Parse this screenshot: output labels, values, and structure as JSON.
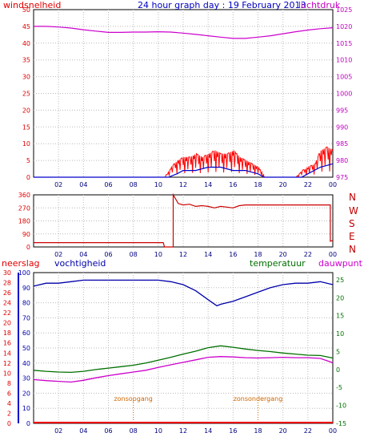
{
  "header": {
    "left_label": "windsnelheid",
    "title": "24 hour graph day : 19 February 2013",
    "right_label": "luchtdruk"
  },
  "compass": [
    "N",
    "W",
    "S",
    "E",
    "N"
  ],
  "lower_labels": {
    "neerslag": "neerslag",
    "vochtigheid": "vochtigheid",
    "temperatuur": "temperatuur",
    "dauwpunt": "dauwpunt",
    "sunrise": "zonsopgang",
    "sunset": "zonsondergang"
  },
  "colors": {
    "wind": "#ff0000",
    "pressure": "#cc00cc",
    "gust_blue": "#0000cc",
    "direction": "#cc0000",
    "humidity": "#0000aa",
    "temperature": "#007000",
    "dewpoint": "#cc00cc",
    "precip": "#ee0000",
    "sun": "#cc6600"
  },
  "chart_data": [
    {
      "type": "line",
      "name": "windsnelheid / luchtdruk",
      "x_ticks": [
        "02",
        "04",
        "06",
        "08",
        "10",
        "12",
        "14",
        "16",
        "18",
        "20",
        "22",
        "00"
      ],
      "y_left_ticks": [
        "0",
        "5",
        "10",
        "15",
        "20",
        "25",
        "30",
        "35",
        "40",
        "45",
        "50"
      ],
      "y_right_ticks": [
        "975",
        "980",
        "985",
        "990",
        "995",
        "1000",
        "1005",
        "1010",
        "1015",
        "1020",
        "1025"
      ],
      "ylim_left": [
        0,
        50
      ],
      "ylim_right": [
        975,
        1025
      ],
      "series": [
        {
          "axis": "right",
          "x": [
            0,
            1,
            2,
            3,
            4,
            5,
            6,
            7,
            8,
            9,
            10,
            11,
            12,
            13,
            14,
            15,
            16,
            17,
            18,
            19,
            20,
            21,
            22,
            23,
            24
          ],
          "values": [
            1020,
            1020,
            1019.8,
            1019.5,
            1019,
            1018.6,
            1018.2,
            1018.2,
            1018.3,
            1018.3,
            1018.4,
            1018.3,
            1018,
            1017.6,
            1017.2,
            1016.8,
            1016.4,
            1016.4,
            1016.8,
            1017.2,
            1017.8,
            1018.4,
            1018.9,
            1019.3,
            1019.6
          ]
        },
        {
          "axis": "left",
          "x": [
            0,
            10.5,
            11,
            11.5,
            12,
            12.5,
            13,
            13.5,
            14,
            14.5,
            15,
            15.5,
            16,
            16.5,
            17,
            17.5,
            18,
            18.5,
            19,
            20,
            21,
            21.5,
            22,
            22.5,
            23,
            23.5,
            24
          ],
          "values": [
            0,
            0,
            3,
            5,
            6,
            6,
            7,
            6,
            7,
            8,
            7,
            7,
            8,
            6,
            5,
            4,
            3,
            0,
            0,
            0,
            0,
            2,
            3,
            4,
            8,
            9,
            8
          ]
        },
        {
          "axis": "left",
          "x": [
            0,
            10.8,
            11.5,
            12,
            13,
            14,
            15,
            16,
            17,
            18,
            18.5,
            21.5,
            22,
            23,
            24
          ],
          "values": [
            0,
            0,
            1,
            2,
            2,
            3,
            3,
            2,
            2,
            1,
            0,
            0,
            1,
            3,
            4
          ]
        }
      ]
    },
    {
      "type": "line",
      "name": "wind direction",
      "x_ticks": [
        "02",
        "04",
        "06",
        "08",
        "10",
        "12",
        "14",
        "16",
        "18",
        "20",
        "22",
        "00"
      ],
      "y_ticks": [
        "0",
        "90",
        "180",
        "270",
        "360"
      ],
      "ylim": [
        0,
        360
      ],
      "series": [
        {
          "x": [
            0,
            10.4,
            10.5,
            11.2,
            11.2,
            11.6,
            12,
            12.5,
            13,
            13.5,
            14,
            14.5,
            15,
            15.5,
            16,
            16.5,
            17,
            18,
            19,
            20,
            21,
            22,
            23,
            23.8,
            23.8,
            24
          ],
          "values": [
            30,
            30,
            0,
            0,
            360,
            300,
            290,
            295,
            280,
            285,
            280,
            270,
            280,
            275,
            270,
            285,
            290,
            290,
            290,
            290,
            290,
            290,
            290,
            290,
            40,
            45
          ]
        }
      ]
    },
    {
      "type": "line",
      "name": "neerslag / vochtigheid / temperatuur / dauwpunt",
      "x_ticks": [
        "02",
        "04",
        "06",
        "08",
        "10",
        "12",
        "14",
        "16",
        "18",
        "20",
        "22",
        "00"
      ],
      "y_left_precip_ticks": [
        "0",
        "2",
        "4",
        "6",
        "8",
        "10",
        "12",
        "14",
        "16",
        "18",
        "20",
        "22",
        "24",
        "26",
        "28",
        "30"
      ],
      "y_left_humidity_ticks": [
        "0",
        "10",
        "20",
        "30",
        "40",
        "50",
        "60",
        "70",
        "80",
        "90",
        "100"
      ],
      "y_right_ticks": [
        "-15",
        "-10",
        "-5",
        "0",
        "5",
        "10",
        "15",
        "20",
        "25"
      ],
      "ylim_humidity": [
        0,
        100
      ],
      "ylim_temp": [
        -15,
        27
      ],
      "series": [
        {
          "name": "vochtigheid",
          "x": [
            0,
            1,
            2,
            3,
            4,
            5,
            6,
            7,
            8,
            9,
            10,
            11,
            12,
            13,
            14,
            14.7,
            15,
            16,
            17,
            18,
            19,
            20,
            21,
            22,
            23,
            24
          ],
          "values": [
            91,
            93,
            93,
            94,
            95,
            95,
            95,
            95,
            95,
            95,
            95,
            94,
            92,
            88,
            82,
            78,
            79,
            81,
            84,
            87,
            90,
            92,
            93,
            93,
            94,
            92
          ]
        },
        {
          "name": "temperatuur",
          "x": [
            0,
            1,
            2,
            3,
            4,
            5,
            6,
            7,
            8,
            9,
            10,
            11,
            12,
            13,
            14,
            15,
            16,
            17,
            18,
            19,
            20,
            21,
            22,
            23,
            24
          ],
          "values": [
            -0.2,
            -0.5,
            -0.7,
            -0.8,
            -0.5,
            0,
            0.4,
            0.8,
            1.2,
            1.8,
            2.6,
            3.4,
            4.3,
            5.1,
            6.1,
            6.6,
            6.2,
            5.7,
            5.3,
            5,
            4.6,
            4.3,
            4,
            3.9,
            3.2
          ]
        },
        {
          "name": "dauwpunt",
          "x": [
            0,
            1,
            2,
            3,
            4,
            5,
            6,
            7,
            8,
            9,
            10,
            11,
            12,
            13,
            14,
            15,
            16,
            17,
            18,
            19,
            20,
            21,
            22,
            23,
            24
          ],
          "values": [
            -2.8,
            -3.1,
            -3.3,
            -3.5,
            -3,
            -2.3,
            -1.7,
            -1.2,
            -0.7,
            -0.2,
            0.6,
            1.3,
            2,
            2.7,
            3.4,
            3.6,
            3.5,
            3.3,
            3.2,
            3.3,
            3.4,
            3.3,
            3.3,
            3.1,
            1.9
          ]
        },
        {
          "name": "neerslag",
          "x": [
            0,
            24
          ],
          "values": [
            0,
            0
          ]
        }
      ],
      "sunrise_hour": 8,
      "sunset_hour": 18
    }
  ]
}
